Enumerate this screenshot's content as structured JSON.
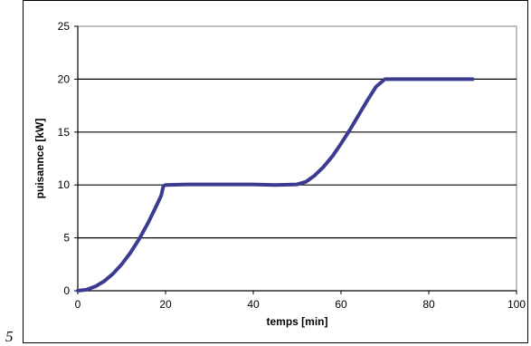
{
  "page_marker": "5",
  "chart_data": {
    "type": "line",
    "title": "",
    "xlabel": "temps [min]",
    "ylabel": "puisannce [kW]",
    "xlim": [
      0,
      100
    ],
    "ylim": [
      0,
      25
    ],
    "xticks": [
      0,
      20,
      40,
      60,
      80,
      100
    ],
    "yticks": [
      0,
      5,
      10,
      15,
      20,
      25
    ],
    "grid": "horizontal",
    "legend": "none",
    "series": [
      {
        "color": "#3b3b8f",
        "x": [
          0,
          2,
          4,
          6,
          8,
          10,
          12,
          14,
          16,
          18,
          19,
          19.5,
          20,
          25,
          30,
          35,
          40,
          45,
          50,
          52,
          54,
          56,
          58,
          60,
          62,
          64,
          66,
          68,
          70,
          75,
          80,
          85,
          90
        ],
        "y": [
          0,
          0.1,
          0.4,
          0.9,
          1.6,
          2.5,
          3.6,
          4.9,
          6.4,
          8.1,
          9.0,
          9.9,
          10.0,
          10.05,
          10.05,
          10.05,
          10.05,
          10.0,
          10.05,
          10.3,
          10.9,
          11.7,
          12.7,
          13.9,
          15.2,
          16.6,
          18.0,
          19.3,
          20.0,
          20.0,
          20.0,
          20.0,
          20.0
        ]
      }
    ]
  }
}
